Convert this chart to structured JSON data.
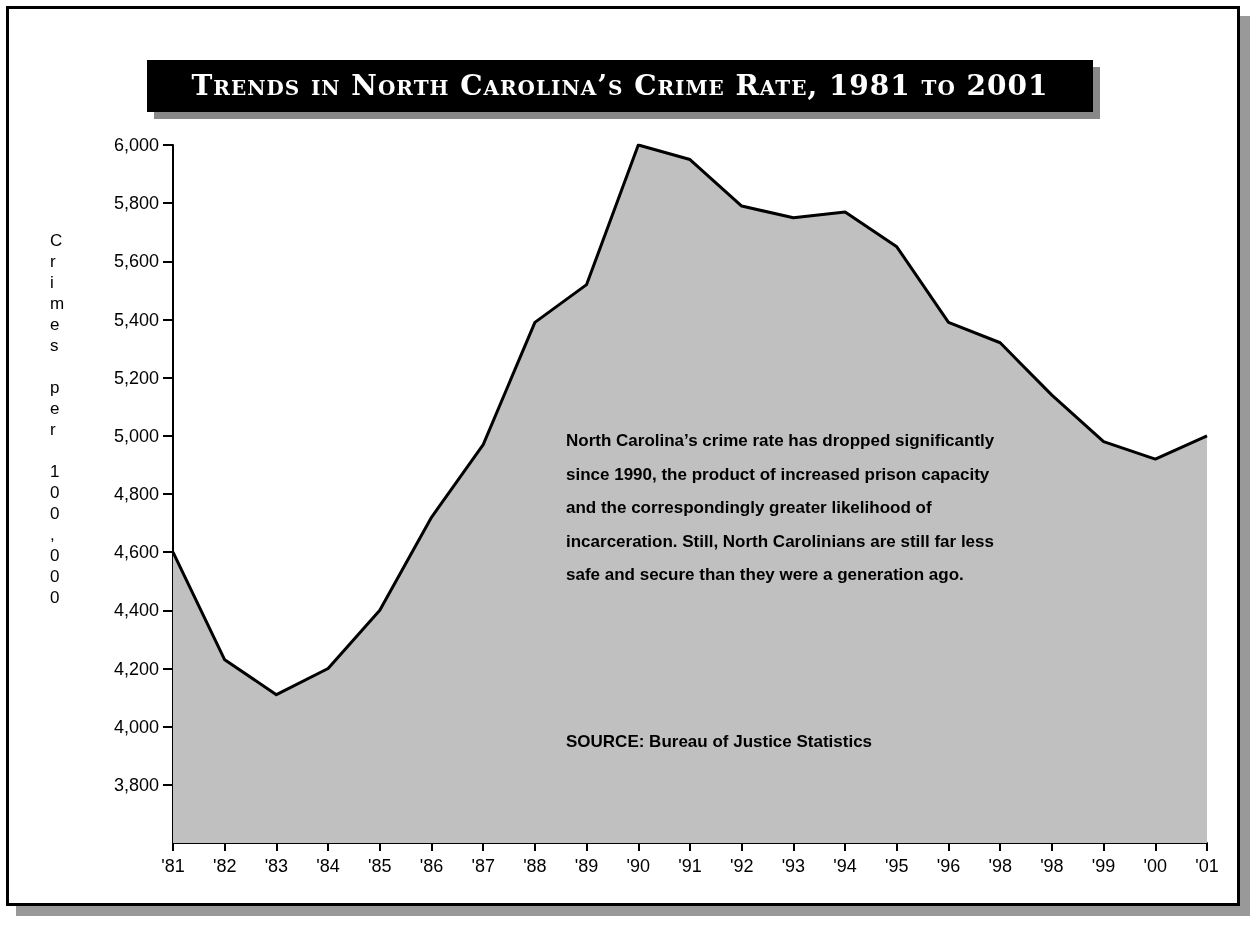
{
  "chart_data": {
    "type": "area",
    "title": "Trends in North Carolina’s Crime Rate, 1981 to 2001",
    "ylabel": "Crimes per 100,000",
    "categories": [
      "'81",
      "'82",
      "'83",
      "'84",
      "'85",
      "'86",
      "'87",
      "'88",
      "'89",
      "'90",
      "'91",
      "'92",
      "'93",
      "'94",
      "'95",
      "'96",
      "'98",
      "'98",
      "'99",
      "'00",
      "'01"
    ],
    "series": [
      {
        "color": "#c0c0c0",
        "values": [
          4600,
          4230,
          4110,
          4200,
          4400,
          4720,
          4970,
          5390,
          5520,
          6000,
          5950,
          5790,
          5750,
          5770,
          5650,
          5390,
          5320,
          5140,
          4980,
          4920,
          5000
        ]
      }
    ],
    "ylim": [
      3600,
      6000
    ],
    "yticks": [
      {
        "value": 3800,
        "label": "3,800"
      },
      {
        "value": 4000,
        "label": "4,000"
      },
      {
        "value": 4200,
        "label": "4,200"
      },
      {
        "value": 4400,
        "label": "4,400"
      },
      {
        "value": 4600,
        "label": "4,600"
      },
      {
        "value": 4800,
        "label": "4,800"
      },
      {
        "value": 5000,
        "label": "5,000"
      },
      {
        "value": 5200,
        "label": "5,200"
      },
      {
        "value": 5400,
        "label": "5,400"
      },
      {
        "value": 5600,
        "label": "5,600"
      },
      {
        "value": 5800,
        "label": "5,800"
      },
      {
        "value": 6000,
        "label": "6,000"
      }
    ],
    "grid": false,
    "marker": "none",
    "line_style": "solid",
    "annotations": [
      "North Carolina’s crime rate has dropped significantly since 1990, the product of increased prison capacity and the correspondingly greater likelihood of incarceration. Still, North Carolinians are still far less safe and secure than they were a generation ago.",
      "SOURCE: Bureau of Justice Statistics"
    ]
  }
}
